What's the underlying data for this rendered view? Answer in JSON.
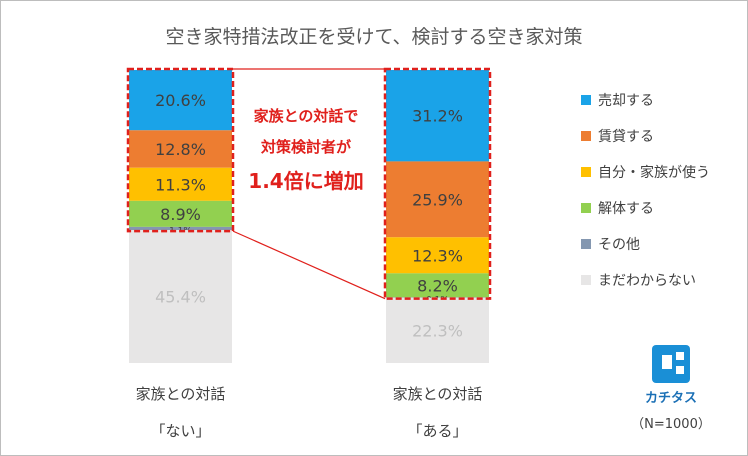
{
  "title": "空き家特措法改正を受けて、検討する空き家対策",
  "chart_data": {
    "type": "bar",
    "stacked": true,
    "categories": [
      {
        "line1": "家族との対話",
        "line2": "「ない」"
      },
      {
        "line1": "家族との対話",
        "line2": "「ある」"
      }
    ],
    "series": [
      {
        "name": "売却する",
        "color": "#1aa3e8",
        "values": [
          20.6,
          31.2
        ],
        "labels": [
          "20.6%",
          "31.2%"
        ]
      },
      {
        "name": "賃貸する",
        "color": "#ed7d31",
        "values": [
          12.8,
          25.9
        ],
        "labels": [
          "12.8%",
          "25.9%"
        ]
      },
      {
        "name": "自分・家族が使う",
        "color": "#ffc000",
        "values": [
          11.3,
          12.3
        ],
        "labels": [
          "11.3%",
          "12.3%"
        ]
      },
      {
        "name": "解体する",
        "color": "#92d050",
        "values": [
          8.9,
          8.2
        ],
        "labels": [
          "8.9%",
          "8.2%"
        ]
      },
      {
        "name": "その他",
        "color": "#8497b0",
        "values": [
          1.1,
          0.1
        ],
        "labels": [
          "1.1%",
          "0.1%"
        ]
      },
      {
        "name": "まだわからない",
        "color": "#e7e6e6",
        "values": [
          45.4,
          22.3
        ],
        "labels": [
          "45.4%",
          "22.3%"
        ]
      }
    ],
    "ylim": [
      0,
      100
    ],
    "legend": "right",
    "grid": false,
    "annotation": {
      "line1": "家族との対話で",
      "line2": "対策検討者が",
      "line3": "1.4倍に増加",
      "color": "#e0201c"
    },
    "n_label": "（N=1000）"
  },
  "logo": {
    "text": "カチタス"
  }
}
